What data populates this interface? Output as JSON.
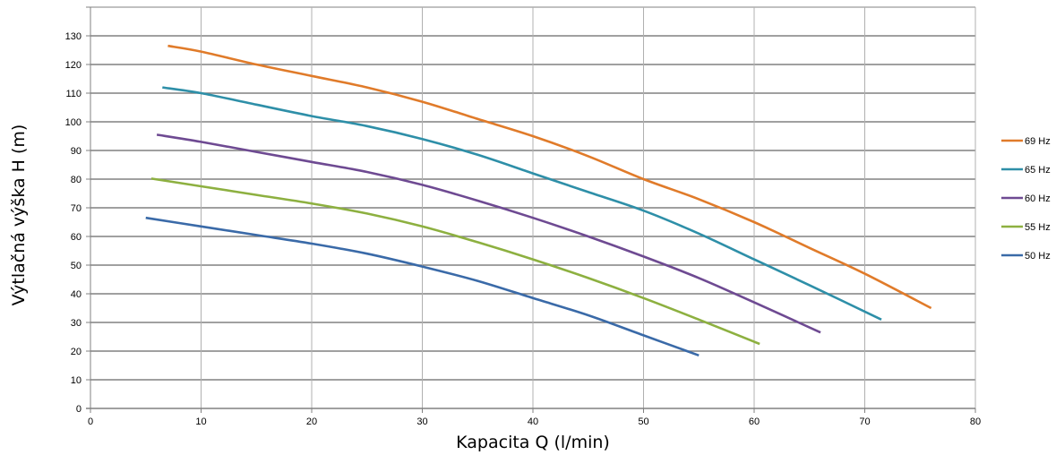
{
  "chart_data": {
    "type": "line",
    "title": "",
    "xlabel": "Kapacita Q (l/min)",
    "ylabel": "Výtlačná výška H (m)",
    "xlim": [
      0,
      80
    ],
    "ylim": [
      0,
      140
    ],
    "x_ticks": [
      0,
      10,
      20,
      30,
      40,
      50,
      60,
      70,
      80
    ],
    "y_ticks": [
      0,
      10,
      20,
      30,
      40,
      50,
      60,
      70,
      80,
      90,
      100,
      110,
      120,
      130
    ],
    "grid": true,
    "legend_position": "right",
    "series": [
      {
        "name": "69 Hz",
        "color": "#e07b2a",
        "x": [
          7,
          10,
          15,
          20,
          25,
          30,
          35,
          40,
          45,
          50,
          55,
          60,
          65,
          70,
          76
        ],
        "y": [
          126.5,
          124.5,
          120,
          116,
          112,
          107,
          101,
          95,
          88,
          80,
          73,
          65,
          56,
          47,
          35
        ]
      },
      {
        "name": "65 Hz",
        "color": "#2e8fa8",
        "x": [
          6.5,
          10,
          15,
          20,
          25,
          30,
          35,
          40,
          45,
          50,
          55,
          60,
          65,
          71.5
        ],
        "y": [
          112,
          110,
          106,
          102,
          98.5,
          94,
          88.5,
          82,
          75.5,
          69,
          61,
          52,
          43,
          31
        ]
      },
      {
        "name": "60 Hz",
        "color": "#6e4a92",
        "x": [
          6,
          10,
          15,
          20,
          25,
          30,
          35,
          40,
          45,
          50,
          55,
          60,
          66
        ],
        "y": [
          95.5,
          93,
          89.5,
          86,
          82.5,
          78,
          72.5,
          66.5,
          60,
          53,
          45.5,
          37,
          26.5
        ]
      },
      {
        "name": "55 Hz",
        "color": "#8db040",
        "x": [
          5.5,
          10,
          15,
          20,
          25,
          30,
          35,
          40,
          45,
          50,
          55,
          60.5
        ],
        "y": [
          80.2,
          77.5,
          74.5,
          71.5,
          68,
          63.5,
          58,
          52,
          45.5,
          38.5,
          31,
          22.5
        ]
      },
      {
        "name": "50 Hz",
        "color": "#3a6aa8",
        "x": [
          5,
          10,
          15,
          20,
          25,
          30,
          35,
          40,
          45,
          50,
          55
        ],
        "y": [
          66.5,
          63.5,
          60.5,
          57.5,
          54,
          49.5,
          44.5,
          38.5,
          32.5,
          25.5,
          18.5
        ]
      }
    ]
  }
}
